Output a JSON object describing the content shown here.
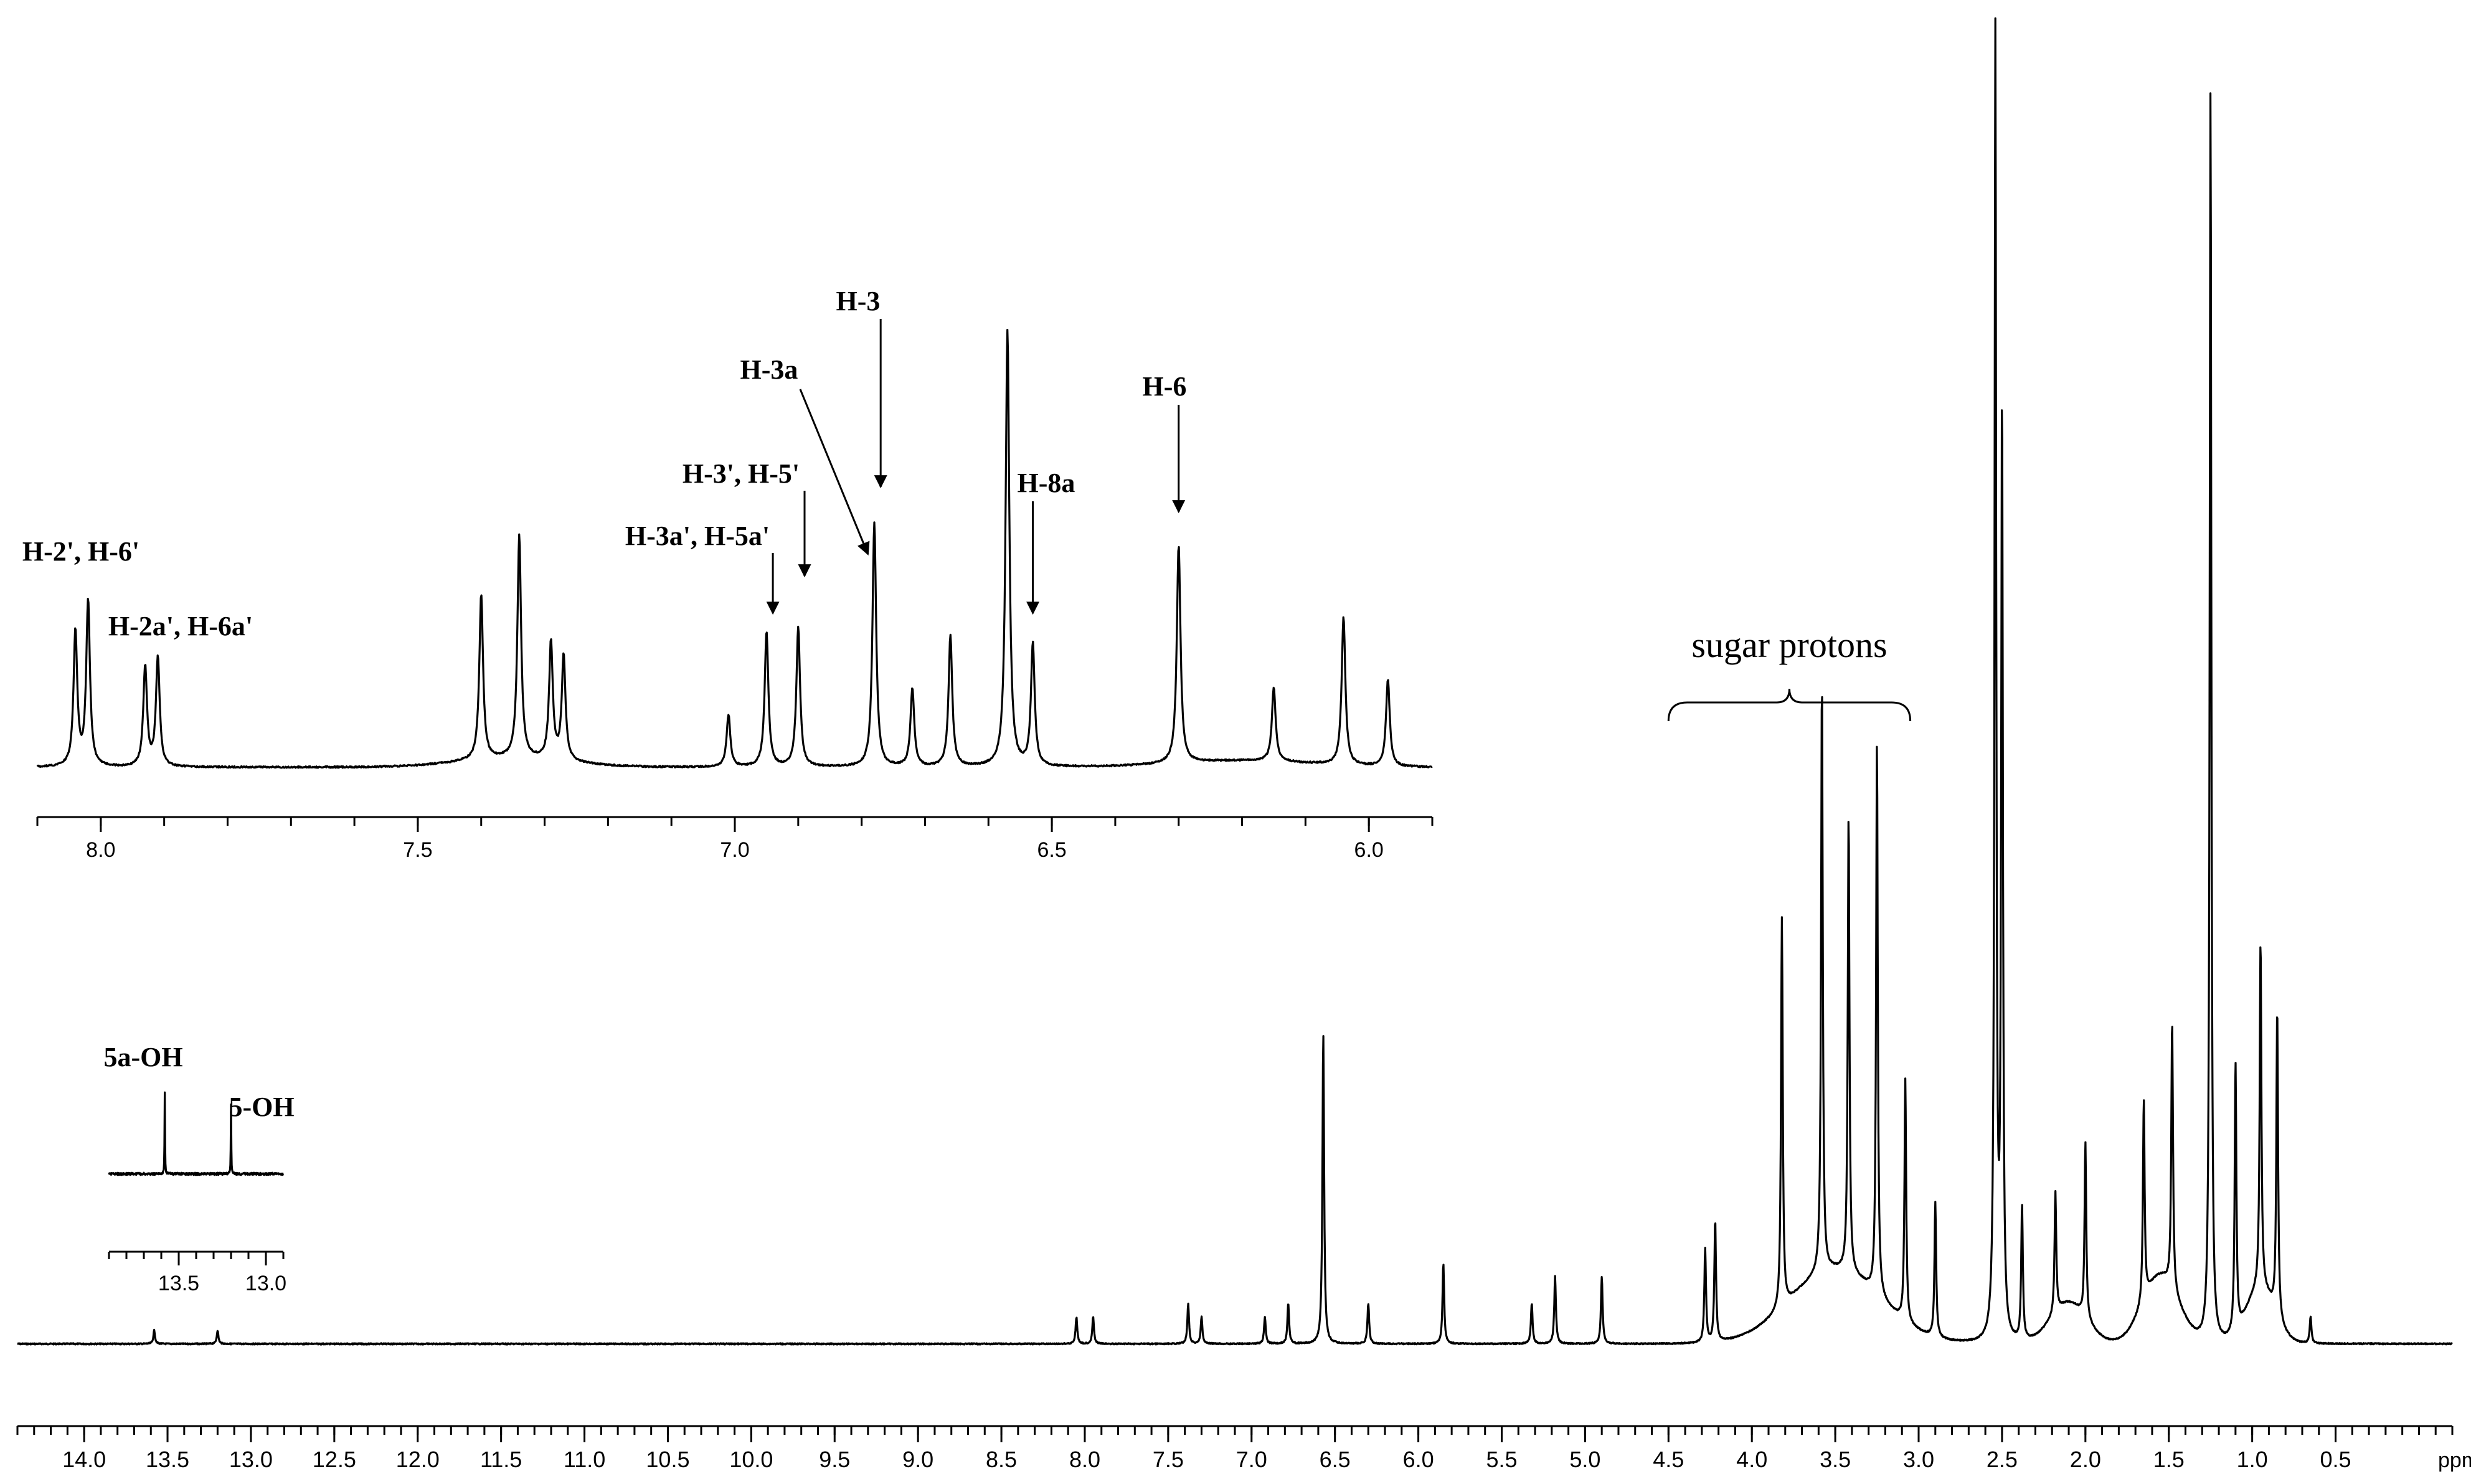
{
  "chart_data": [
    {
      "type": "line",
      "title": "",
      "xlabel": "ppm",
      "ylabel": "",
      "x_reversed": true,
      "xlim": [
        14.4,
        -0.2
      ],
      "x_ticks": [
        "14.0",
        "13.5",
        "13.0",
        "12.5",
        "12.0",
        "11.5",
        "11.0",
        "10.5",
        "10.0",
        "9.5",
        "9.0",
        "8.5",
        "8.0",
        "7.5",
        "7.0",
        "6.5",
        "6.0",
        "5.5",
        "5.0",
        "4.5",
        "4.0",
        "3.5",
        "3.0",
        "2.5",
        "2.0",
        "1.5",
        "1.0",
        "0.5"
      ],
      "unit_label": "ppm",
      "grid": false,
      "peaks": [
        {
          "ppm": 13.58,
          "height": 0.01
        },
        {
          "ppm": 13.2,
          "height": 0.01
        },
        {
          "ppm": 8.05,
          "height": 0.02
        },
        {
          "ppm": 7.95,
          "height": 0.02
        },
        {
          "ppm": 7.38,
          "height": 0.03
        },
        {
          "ppm": 7.3,
          "height": 0.02
        },
        {
          "ppm": 6.92,
          "height": 0.02
        },
        {
          "ppm": 6.78,
          "height": 0.03
        },
        {
          "ppm": 6.57,
          "height": 0.23
        },
        {
          "ppm": 6.3,
          "height": 0.03
        },
        {
          "ppm": 5.85,
          "height": 0.06
        },
        {
          "ppm": 5.32,
          "height": 0.03
        },
        {
          "ppm": 5.18,
          "height": 0.05
        },
        {
          "ppm": 4.9,
          "height": 0.05
        },
        {
          "ppm": 4.28,
          "height": 0.07
        },
        {
          "ppm": 4.22,
          "height": 0.09
        },
        {
          "ppm": 3.82,
          "height": 0.29
        },
        {
          "ppm": 3.58,
          "height": 0.44
        },
        {
          "ppm": 3.42,
          "height": 0.34
        },
        {
          "ppm": 3.25,
          "height": 0.41
        },
        {
          "ppm": 3.08,
          "height": 0.18
        },
        {
          "ppm": 2.9,
          "height": 0.1
        },
        {
          "ppm": 2.54,
          "height": 0.97
        },
        {
          "ppm": 2.5,
          "height": 0.69
        },
        {
          "ppm": 2.38,
          "height": 0.1
        },
        {
          "ppm": 2.18,
          "height": 0.09
        },
        {
          "ppm": 2.0,
          "height": 0.13
        },
        {
          "ppm": 1.65,
          "height": 0.15
        },
        {
          "ppm": 1.48,
          "height": 0.2
        },
        {
          "ppm": 1.25,
          "height": 0.93
        },
        {
          "ppm": 1.1,
          "height": 0.2
        },
        {
          "ppm": 0.95,
          "height": 0.26
        },
        {
          "ppm": 0.85,
          "height": 0.23
        },
        {
          "ppm": 0.65,
          "height": 0.02
        }
      ],
      "annotations": [
        {
          "text": "sugar protons",
          "ppm_range": [
            4.5,
            3.05
          ]
        }
      ]
    },
    {
      "type": "line",
      "title": "",
      "xlabel": "",
      "x_reversed": true,
      "xlim": [
        8.1,
        5.9
      ],
      "x_ticks": [
        "8.0",
        "7.5",
        "7.0",
        "6.5",
        "6.0"
      ],
      "grid": false,
      "peaks": [
        {
          "ppm": 8.04,
          "height": 0.31
        },
        {
          "ppm": 8.02,
          "height": 0.38
        },
        {
          "ppm": 7.93,
          "height": 0.23
        },
        {
          "ppm": 7.91,
          "height": 0.25
        },
        {
          "ppm": 7.4,
          "height": 0.38
        },
        {
          "ppm": 7.34,
          "height": 0.51
        },
        {
          "ppm": 7.29,
          "height": 0.27
        },
        {
          "ppm": 7.27,
          "height": 0.24
        },
        {
          "ppm": 7.01,
          "height": 0.12
        },
        {
          "ppm": 6.95,
          "height": 0.31
        },
        {
          "ppm": 6.9,
          "height": 0.32
        },
        {
          "ppm": 6.78,
          "height": 0.56
        },
        {
          "ppm": 6.72,
          "height": 0.18
        },
        {
          "ppm": 6.66,
          "height": 0.3
        },
        {
          "ppm": 6.57,
          "height": 1.0
        },
        {
          "ppm": 6.53,
          "height": 0.28
        },
        {
          "ppm": 6.3,
          "height": 0.5
        },
        {
          "ppm": 6.15,
          "height": 0.17
        },
        {
          "ppm": 6.04,
          "height": 0.34
        },
        {
          "ppm": 5.97,
          "height": 0.2
        }
      ],
      "annotations": [
        {
          "text": "H-2', H-6'",
          "ppm": 8.03
        },
        {
          "text": "H-2a', H-6a'",
          "ppm": 7.92
        },
        {
          "text": "H-3a', H-5a'",
          "ppm": 6.94
        },
        {
          "text": "H-3', H-5'",
          "ppm": 6.89
        },
        {
          "text": "H-3a",
          "ppm": 6.79
        },
        {
          "text": "H-3",
          "ppm": 6.77
        },
        {
          "text": "H-8a",
          "ppm": 6.53
        },
        {
          "text": "H-6",
          "ppm": 6.3
        }
      ]
    },
    {
      "type": "line",
      "title": "",
      "xlabel": "",
      "x_reversed": true,
      "xlim": [
        13.9,
        12.9
      ],
      "x_ticks": [
        "13.5",
        "13.0"
      ],
      "grid": false,
      "peaks": [
        {
          "ppm": 13.58,
          "height": 1.0
        },
        {
          "ppm": 13.2,
          "height": 0.85
        }
      ],
      "annotations": [
        {
          "text": "5a-OH",
          "ppm": 13.58
        },
        {
          "text": "5-OH",
          "ppm": 13.2
        }
      ]
    }
  ]
}
